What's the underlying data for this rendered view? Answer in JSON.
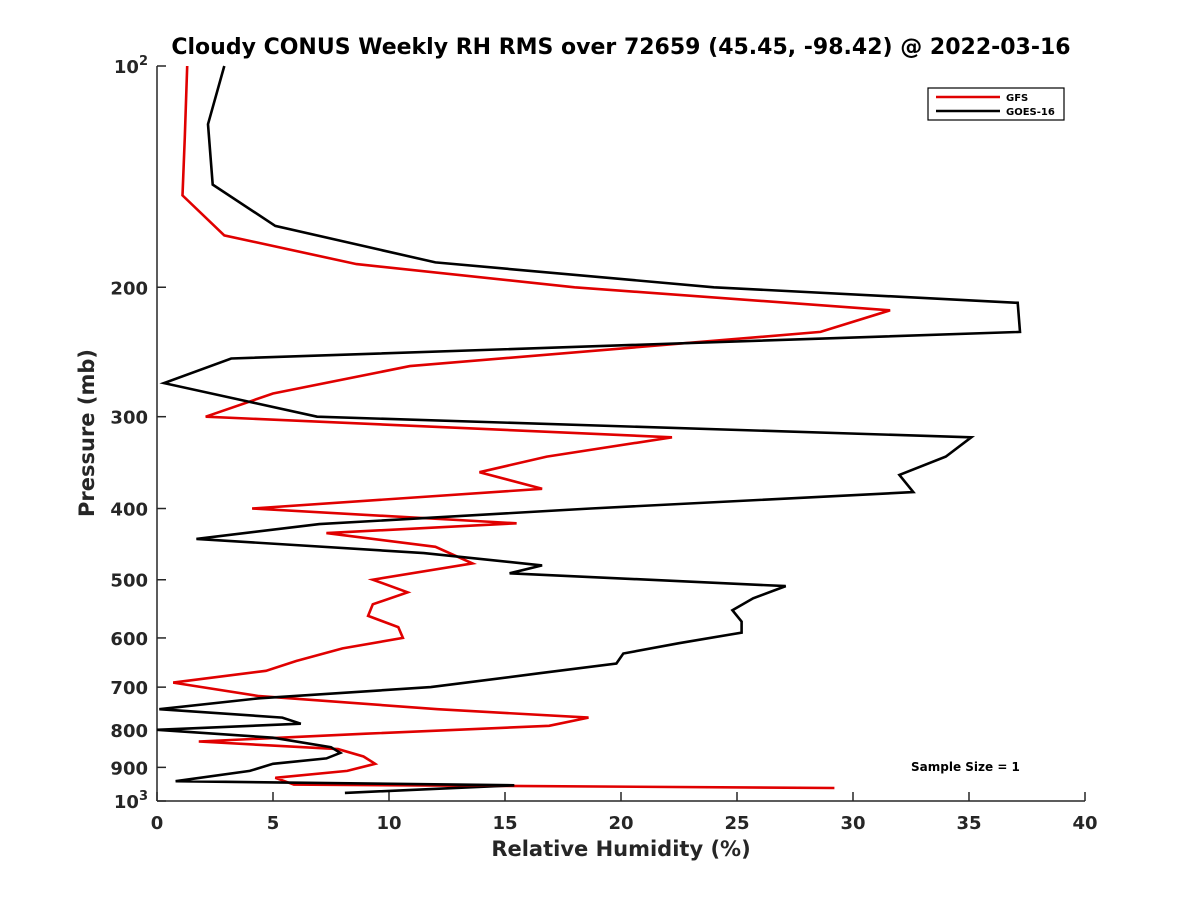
{
  "chart_data": {
    "type": "line",
    "title": "Cloudy CONUS Weekly RH RMS over 72659 (45.45, -98.42) @ 2022-03-16",
    "xlabel": "Relative Humidity (%)",
    "ylabel": "Pressure (mb)",
    "xlim": [
      0,
      40
    ],
    "ylim": [
      100,
      1000
    ],
    "y_scale": "log",
    "y_reversed": true,
    "grid": false,
    "legend_position": "top-right",
    "annotation": "Sample Size = 1",
    "x_ticks": [
      "0",
      "5",
      "10",
      "15",
      "20",
      "25",
      "30",
      "35",
      "40"
    ],
    "y_ticks": [
      {
        "value": 100,
        "base": "10",
        "exp": "2"
      },
      {
        "value": 200,
        "label": "200"
      },
      {
        "value": 300,
        "label": "300"
      },
      {
        "value": 400,
        "label": "400"
      },
      {
        "value": 500,
        "label": "500"
      },
      {
        "value": 600,
        "label": "600"
      },
      {
        "value": 700,
        "label": "700"
      },
      {
        "value": 800,
        "label": "800"
      },
      {
        "value": 900,
        "label": "900"
      },
      {
        "value": 1000,
        "base": "10",
        "exp": "3"
      }
    ],
    "series": [
      {
        "name": "GFS",
        "color": "#e00000",
        "points": [
          [
            1.3,
            100
          ],
          [
            1.2,
            125
          ],
          [
            1.1,
            150
          ],
          [
            2.9,
            170
          ],
          [
            8.6,
            186
          ],
          [
            18.0,
            200
          ],
          [
            31.6,
            215
          ],
          [
            28.6,
            230
          ],
          [
            10.9,
            256
          ],
          [
            5.0,
            279
          ],
          [
            2.1,
            300
          ],
          [
            22.2,
            320
          ],
          [
            16.8,
            340
          ],
          [
            13.9,
            357
          ],
          [
            16.6,
            376
          ],
          [
            4.1,
            400
          ],
          [
            15.5,
            419
          ],
          [
            7.3,
            432
          ],
          [
            12.0,
            451
          ],
          [
            13.6,
            475
          ],
          [
            9.3,
            500
          ],
          [
            10.8,
            520
          ],
          [
            9.3,
            540
          ],
          [
            9.1,
            560
          ],
          [
            10.4,
            580
          ],
          [
            10.6,
            600
          ],
          [
            8.0,
            620
          ],
          [
            6.0,
            645
          ],
          [
            4.7,
            665
          ],
          [
            0.7,
            690
          ],
          [
            4.4,
            720
          ],
          [
            12.1,
            750
          ],
          [
            18.6,
            770
          ],
          [
            16.9,
            790
          ],
          [
            9.0,
            810
          ],
          [
            1.8,
            830
          ],
          [
            7.8,
            850
          ],
          [
            8.9,
            870
          ],
          [
            9.4,
            890
          ],
          [
            8.2,
            910
          ],
          [
            5.1,
            930
          ],
          [
            5.9,
            950
          ],
          [
            29.2,
            960
          ]
        ]
      },
      {
        "name": "GOES-16",
        "color": "#000000",
        "points": [
          [
            2.9,
            100
          ],
          [
            2.2,
            120
          ],
          [
            2.4,
            145
          ],
          [
            5.1,
            165
          ],
          [
            12.0,
            185
          ],
          [
            24.0,
            200
          ],
          [
            37.1,
            210
          ],
          [
            37.2,
            230
          ],
          [
            3.2,
            250
          ],
          [
            0.3,
            270
          ],
          [
            6.9,
            300
          ],
          [
            35.1,
            320
          ],
          [
            34.0,
            340
          ],
          [
            32.0,
            360
          ],
          [
            32.6,
            380
          ],
          [
            18.7,
            400
          ],
          [
            7.0,
            420
          ],
          [
            1.7,
            440
          ],
          [
            11.5,
            460
          ],
          [
            16.6,
            478
          ],
          [
            15.2,
            490
          ],
          [
            27.1,
            510
          ],
          [
            25.7,
            530
          ],
          [
            24.8,
            550
          ],
          [
            25.2,
            570
          ],
          [
            25.2,
            590
          ],
          [
            22.5,
            610
          ],
          [
            20.1,
            630
          ],
          [
            19.8,
            650
          ],
          [
            16.5,
            670
          ],
          [
            11.8,
            700
          ],
          [
            4.4,
            725
          ],
          [
            0.1,
            750
          ],
          [
            5.4,
            770
          ],
          [
            6.2,
            785
          ],
          [
            0.0,
            800
          ],
          [
            5.0,
            820
          ],
          [
            7.5,
            845
          ],
          [
            7.9,
            860
          ],
          [
            7.3,
            875
          ],
          [
            5.0,
            890
          ],
          [
            4.0,
            910
          ],
          [
            0.8,
            940
          ],
          [
            15.4,
            952
          ],
          [
            8.1,
            975
          ]
        ]
      }
    ]
  }
}
